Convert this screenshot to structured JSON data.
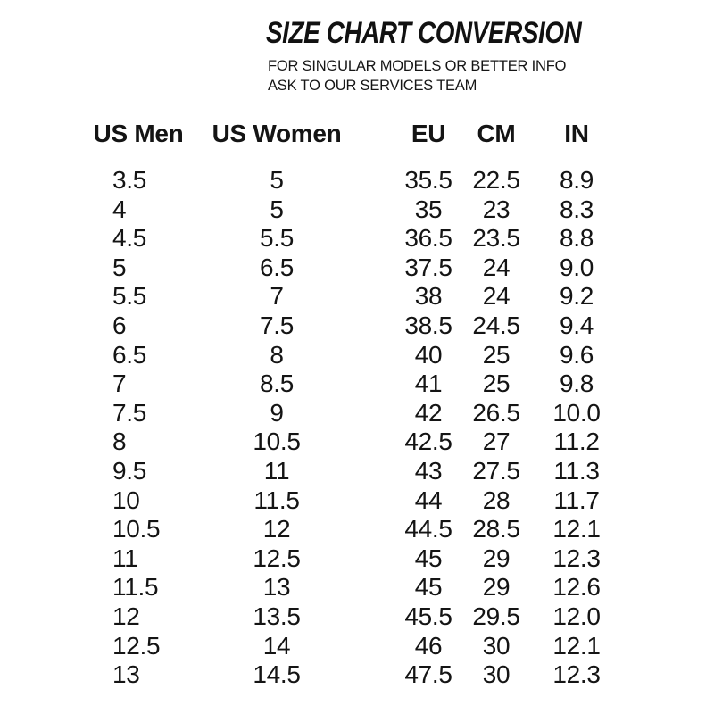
{
  "page": {
    "background": "#ffffff",
    "text_color": "#121212"
  },
  "header": {
    "title": "SIZE CHART CONVERSION",
    "subtitle_lines": [
      "FOR SINGULAR MODELS OR BETTER INFO",
      "ASK TO OUR SERVICES TEAM"
    ]
  },
  "chart_data": {
    "type": "table",
    "title": "SIZE CHART CONVERSION",
    "subtitle": "FOR SINGULAR MODELS OR BETTER INFO ASK TO OUR SERVICES TEAM",
    "columns": [
      "US Men",
      "US Women",
      "EU",
      "CM",
      "IN"
    ],
    "rows": [
      {
        "us_men": "3.5",
        "us_women": "5",
        "eu": "35.5",
        "cm": "22.5",
        "in": "8.9"
      },
      {
        "us_men": "4",
        "us_women": "5",
        "eu": "35",
        "cm": "23",
        "in": "8.3"
      },
      {
        "us_men": "4.5",
        "us_women": "5.5",
        "eu": "36.5",
        "cm": "23.5",
        "in": "8.8"
      },
      {
        "us_men": "5",
        "us_women": "6.5",
        "eu": "37.5",
        "cm": "24",
        "in": "9.0"
      },
      {
        "us_men": "5.5",
        "us_women": "7",
        "eu": "38",
        "cm": "24",
        "in": "9.2"
      },
      {
        "us_men": "6",
        "us_women": "7.5",
        "eu": "38.5",
        "cm": "24.5",
        "in": "9.4"
      },
      {
        "us_men": "6.5",
        "us_women": "8",
        "eu": "40",
        "cm": "25",
        "in": "9.6"
      },
      {
        "us_men": "7",
        "us_women": "8.5",
        "eu": "41",
        "cm": "25",
        "in": "9.8"
      },
      {
        "us_men": "7.5",
        "us_women": "9",
        "eu": "42",
        "cm": "26.5",
        "in": "10.0"
      },
      {
        "us_men": "8",
        "us_women": "10.5",
        "eu": "42.5",
        "cm": "27",
        "in": "11.2"
      },
      {
        "us_men": "9.5",
        "us_women": "11",
        "eu": "43",
        "cm": "27.5",
        "in": "11.3"
      },
      {
        "us_men": "10",
        "us_women": "11.5",
        "eu": "44",
        "cm": "28",
        "in": "11.7"
      },
      {
        "us_men": "10.5",
        "us_women": "12",
        "eu": "44.5",
        "cm": "28.5",
        "in": "12.1"
      },
      {
        "us_men": "11",
        "us_women": "12.5",
        "eu": "45",
        "cm": "29",
        "in": "12.3"
      },
      {
        "us_men": "11.5",
        "us_women": "13",
        "eu": "45",
        "cm": "29",
        "in": "12.6"
      },
      {
        "us_men": "12",
        "us_women": "13.5",
        "eu": "45.5",
        "cm": "29.5",
        "in": "12.0"
      },
      {
        "us_men": "12.5",
        "us_women": "14",
        "eu": "46",
        "cm": "30",
        "in": "12.1"
      },
      {
        "us_men": "13",
        "us_women": "14.5",
        "eu": "47.5",
        "cm": "30",
        "in": "12.3"
      }
    ]
  }
}
